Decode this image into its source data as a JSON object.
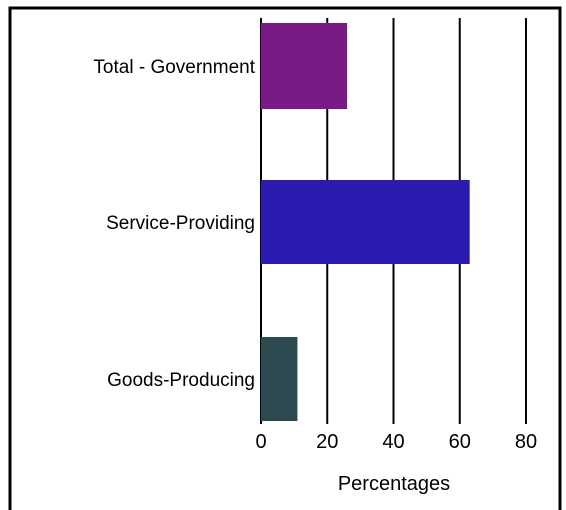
{
  "chart_data": {
    "type": "bar",
    "orientation": "horizontal",
    "categories": [
      "Total - Government",
      "Service-Providing",
      "Goods-Producing"
    ],
    "values": [
      26,
      63,
      11
    ],
    "xlabel": "Percentages",
    "ylabel": "",
    "xlim": [
      0,
      80
    ],
    "xticks": [
      "0",
      "20",
      "40",
      "60",
      "80"
    ],
    "grid": "vertical",
    "legend": "none",
    "colors": {
      "bars": [
        "#7a1a86",
        "#2a1ab0",
        "#2c4a50"
      ],
      "frame": "#000000",
      "background": "#ffffff"
    }
  }
}
